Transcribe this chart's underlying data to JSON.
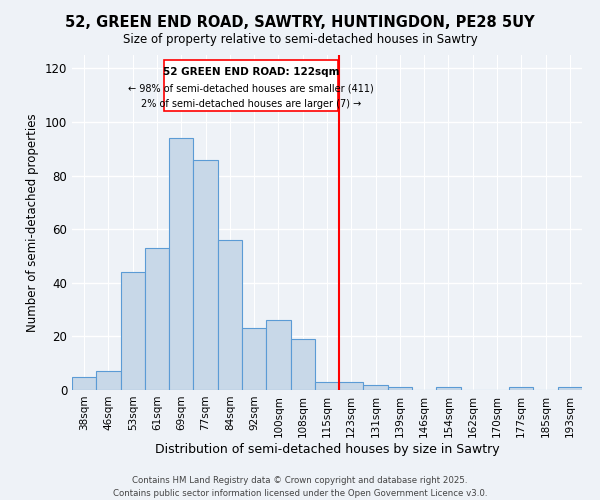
{
  "title": "52, GREEN END ROAD, SAWTRY, HUNTINGDON, PE28 5UY",
  "subtitle": "Size of property relative to semi-detached houses in Sawtry",
  "xlabel": "Distribution of semi-detached houses by size in Sawtry",
  "ylabel": "Number of semi-detached properties",
  "bin_labels": [
    "38sqm",
    "46sqm",
    "53sqm",
    "61sqm",
    "69sqm",
    "77sqm",
    "84sqm",
    "92sqm",
    "100sqm",
    "108sqm",
    "115sqm",
    "123sqm",
    "131sqm",
    "139sqm",
    "146sqm",
    "154sqm",
    "162sqm",
    "170sqm",
    "177sqm",
    "185sqm",
    "193sqm"
  ],
  "bar_heights": [
    5,
    7,
    44,
    53,
    94,
    86,
    56,
    23,
    26,
    19,
    3,
    3,
    2,
    1,
    0,
    1,
    0,
    0,
    1,
    0,
    1
  ],
  "bar_color": "#c8d8e8",
  "bar_edge_color": "#5b9bd5",
  "vline_x_index": 11,
  "vline_color": "red",
  "annotation_title": "52 GREEN END ROAD: 122sqm",
  "annotation_line1": "← 98% of semi-detached houses are smaller (411)",
  "annotation_line2": "2% of semi-detached houses are larger (7) →",
  "ylim": [
    0,
    125
  ],
  "yticks": [
    0,
    20,
    40,
    60,
    80,
    100,
    120
  ],
  "footer1": "Contains HM Land Registry data © Crown copyright and database right 2025.",
  "footer2": "Contains public sector information licensed under the Open Government Licence v3.0.",
  "background_color": "#eef2f7",
  "grid_color": "white"
}
